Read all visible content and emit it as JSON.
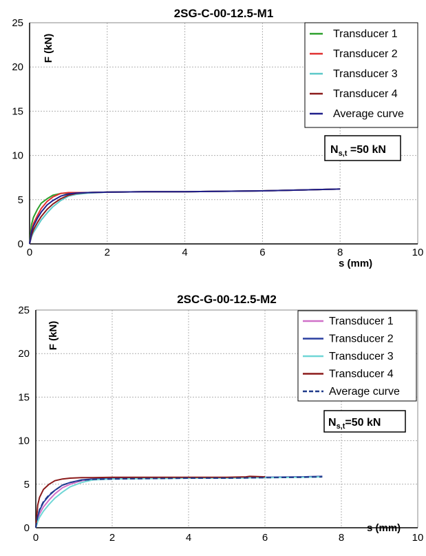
{
  "chart_data": [
    {
      "type": "line",
      "title": "2SG-C-00-12.5-M1",
      "xlabel": "s (mm)",
      "ylabel": "F (kN)",
      "xlim": [
        0,
        10
      ],
      "ylim": [
        0,
        25
      ],
      "xticks": [
        "0",
        "2",
        "4",
        "6",
        "8",
        "10"
      ],
      "yticks": [
        "0",
        "5",
        "10",
        "15",
        "20",
        "25"
      ],
      "grid": true,
      "legend_position": "top-right",
      "annotation": {
        "main": "N",
        "sub": "s,t",
        "rest": " =50 kN"
      },
      "series": [
        {
          "name": "Transducer 1",
          "color": "#2ca02c",
          "dash": false,
          "x": [
            0,
            0.05,
            0.1,
            0.2,
            0.3,
            0.45,
            0.6,
            0.8,
            1.0,
            1.5,
            2,
            3,
            4,
            5,
            6,
            7,
            8
          ],
          "y": [
            0,
            2.2,
            3.0,
            3.9,
            4.6,
            5.1,
            5.5,
            5.7,
            5.75,
            5.8,
            5.85,
            5.9,
            5.9,
            5.95,
            6.0,
            6.1,
            6.2
          ]
        },
        {
          "name": "Transducer 2",
          "color": "#e03030",
          "dash": false,
          "x": [
            0,
            0.05,
            0.1,
            0.2,
            0.3,
            0.45,
            0.6,
            0.8,
            1.0,
            1.5,
            2,
            3,
            4,
            5,
            6,
            7,
            8
          ],
          "y": [
            0,
            1.5,
            2.3,
            3.2,
            4.0,
            4.8,
            5.3,
            5.7,
            5.8,
            5.8,
            5.85,
            5.9,
            5.9,
            5.95,
            6.0,
            6.1,
            6.2
          ]
        },
        {
          "name": "Transducer 3",
          "color": "#5bc8c8",
          "dash": false,
          "x": [
            0,
            0.05,
            0.1,
            0.2,
            0.3,
            0.45,
            0.6,
            0.8,
            1.0,
            1.2,
            1.5,
            2,
            3,
            4,
            5,
            6,
            7,
            8
          ],
          "y": [
            0,
            0.8,
            1.3,
            2.0,
            2.7,
            3.5,
            4.2,
            4.9,
            5.4,
            5.6,
            5.75,
            5.85,
            5.9,
            5.9,
            5.95,
            6.0,
            6.1,
            6.2
          ]
        },
        {
          "name": "Transducer 4",
          "color": "#8b1a1a",
          "dash": false,
          "x": [
            0,
            0.05,
            0.1,
            0.2,
            0.3,
            0.45,
            0.6,
            0.8,
            1.0,
            1.2,
            1.5,
            2,
            3,
            4,
            5,
            6,
            7,
            8
          ],
          "y": [
            0,
            1.0,
            1.6,
            2.4,
            3.1,
            3.9,
            4.5,
            5.1,
            5.5,
            5.7,
            5.8,
            5.85,
            5.9,
            5.9,
            5.95,
            6.0,
            6.1,
            6.2
          ]
        },
        {
          "name": "Average curve",
          "color": "#1f1f8a",
          "dash": false,
          "x": [
            0,
            0.05,
            0.1,
            0.2,
            0.3,
            0.45,
            0.6,
            0.8,
            1.0,
            1.2,
            1.5,
            2,
            3,
            4,
            5,
            6,
            7,
            8
          ],
          "y": [
            0,
            1.4,
            2.0,
            2.9,
            3.6,
            4.4,
            4.9,
            5.4,
            5.65,
            5.75,
            5.8,
            5.85,
            5.9,
            5.9,
            5.95,
            6.0,
            6.1,
            6.2
          ]
        }
      ]
    },
    {
      "type": "line",
      "title": "2SC-G-00-12.5-M2",
      "xlabel": "s (mm)",
      "ylabel": "F (kN)",
      "xlim": [
        0,
        10
      ],
      "ylim": [
        0,
        25
      ],
      "xticks": [
        "0",
        "2",
        "4",
        "6",
        "8",
        "10"
      ],
      "yticks": [
        "0",
        "5",
        "10",
        "15",
        "20",
        "25"
      ],
      "grid": true,
      "legend_position": "top-right",
      "annotation": {
        "main": "N",
        "sub": "s,t",
        "rest": "=50 kN"
      },
      "series": [
        {
          "name": "Transducer 1",
          "color": "#d070c8",
          "dash": false,
          "x": [
            0,
            0.05,
            0.1,
            0.2,
            0.35,
            0.5,
            0.7,
            0.9,
            1.2,
            1.5,
            2,
            3,
            4,
            5,
            6,
            7,
            7.5
          ],
          "y": [
            0,
            1.0,
            1.6,
            2.4,
            3.2,
            3.9,
            4.6,
            5.0,
            5.4,
            5.6,
            5.65,
            5.7,
            5.7,
            5.75,
            5.8,
            5.85,
            5.9
          ]
        },
        {
          "name": "Transducer 2",
          "color": "#2a3fa0",
          "dash": false,
          "x": [
            0,
            0.05,
            0.1,
            0.2,
            0.35,
            0.5,
            0.7,
            0.9,
            1.2,
            1.5,
            2,
            3,
            4,
            5,
            6,
            7,
            7.5
          ],
          "y": [
            0,
            1.3,
            2.0,
            2.9,
            3.7,
            4.3,
            4.9,
            5.2,
            5.5,
            5.6,
            5.65,
            5.7,
            5.7,
            5.75,
            5.8,
            5.85,
            5.9
          ]
        },
        {
          "name": "Transducer 3",
          "color": "#6fd6d6",
          "dash": false,
          "x": [
            0,
            0.05,
            0.1,
            0.2,
            0.35,
            0.5,
            0.7,
            0.9,
            1.2,
            1.5,
            2,
            3,
            4,
            5,
            6,
            7,
            7.5
          ],
          "y": [
            0,
            0.7,
            1.2,
            1.9,
            2.7,
            3.4,
            4.1,
            4.7,
            5.2,
            5.5,
            5.6,
            5.65,
            5.7,
            5.7,
            5.75,
            5.8,
            5.85
          ]
        },
        {
          "name": "Transducer 4",
          "color": "#8b1a1a",
          "dash": false,
          "x": [
            0,
            0.05,
            0.1,
            0.2,
            0.35,
            0.5,
            0.7,
            0.9,
            1.2,
            1.5,
            2,
            3,
            4,
            5,
            5.5,
            5.6,
            6
          ],
          "y": [
            0,
            2.6,
            3.5,
            4.4,
            5.0,
            5.4,
            5.6,
            5.7,
            5.75,
            5.75,
            5.8,
            5.8,
            5.8,
            5.8,
            5.85,
            5.9,
            5.85
          ]
        },
        {
          "name": "Average curve",
          "color": "#1f3a8a",
          "dash": true,
          "x": [
            0,
            0.05,
            0.1,
            0.2,
            0.35,
            0.5,
            0.7,
            0.9,
            1.2,
            1.5,
            2,
            3,
            4,
            5,
            6,
            7,
            7.5
          ],
          "y": [
            0,
            1.4,
            2.1,
            3.0,
            3.8,
            4.3,
            4.9,
            5.2,
            5.45,
            5.55,
            5.6,
            5.65,
            5.7,
            5.7,
            5.75,
            5.8,
            5.85
          ]
        }
      ]
    }
  ]
}
